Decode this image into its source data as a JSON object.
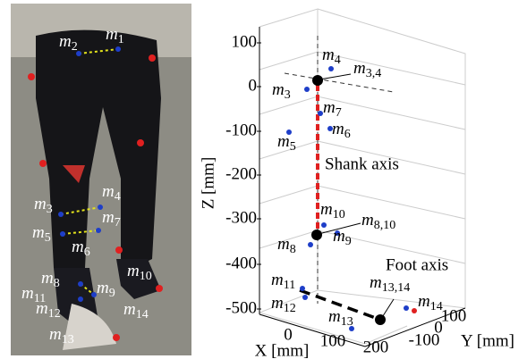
{
  "photo": {
    "labels": [
      {
        "m": "m",
        "sub": "2"
      },
      {
        "m": "m",
        "sub": "1"
      },
      {
        "m": "m",
        "sub": "4"
      },
      {
        "m": "m",
        "sub": "3"
      },
      {
        "m": "m",
        "sub": "7"
      },
      {
        "m": "m",
        "sub": "5"
      },
      {
        "m": "m",
        "sub": "6"
      },
      {
        "m": "m",
        "sub": "8"
      },
      {
        "m": "m",
        "sub": "10"
      },
      {
        "m": "m",
        "sub": "11"
      },
      {
        "m": "m",
        "sub": "9"
      },
      {
        "m": "m",
        "sub": "12"
      },
      {
        "m": "m",
        "sub": "14"
      },
      {
        "m": "m",
        "sub": "13"
      }
    ]
  },
  "plot": {
    "zlabel": "Z [mm]",
    "xlabel": "X [mm]",
    "ylabel": "Y [mm]",
    "zticks": [
      100,
      0,
      -100,
      -200,
      -300,
      -400,
      -500
    ],
    "xticks": [
      0,
      100,
      200
    ],
    "yticks": [
      -100,
      0,
      100
    ],
    "shank_label": "Shank axis",
    "foot_label": "Foot axis",
    "labels": [
      {
        "m": "m",
        "sub": "4"
      },
      {
        "m": "m",
        "sub": "3,4"
      },
      {
        "m": "m",
        "sub": "3"
      },
      {
        "m": "m",
        "sub": "7"
      },
      {
        "m": "m",
        "sub": "6"
      },
      {
        "m": "m",
        "sub": "5"
      },
      {
        "m": "m",
        "sub": "10"
      },
      {
        "m": "m",
        "sub": "8,10"
      },
      {
        "m": "m",
        "sub": "9"
      },
      {
        "m": "m",
        "sub": "8"
      },
      {
        "m": "m",
        "sub": "11"
      },
      {
        "m": "m",
        "sub": "12"
      },
      {
        "m": "m",
        "sub": "13,14"
      },
      {
        "m": "m",
        "sub": "13"
      },
      {
        "m": "m",
        "sub": "14"
      }
    ]
  }
}
